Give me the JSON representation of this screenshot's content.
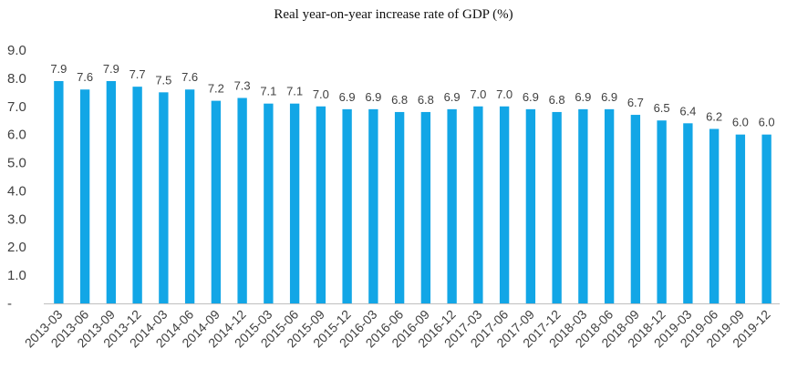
{
  "chart_data": {
    "type": "bar",
    "title": "Real year-on-year increase rate of GDP (%)",
    "categories": [
      "2013-03",
      "2013-06",
      "2013-09",
      "2013-12",
      "2014-03",
      "2014-06",
      "2014-09",
      "2014-12",
      "2015-03",
      "2015-06",
      "2015-09",
      "2015-12",
      "2016-03",
      "2016-06",
      "2016-09",
      "2016-12",
      "2017-03",
      "2017-06",
      "2017-09",
      "2017-12",
      "2018-03",
      "2018-06",
      "2018-09",
      "2018-12",
      "2019-03",
      "2019-06",
      "2019-09",
      "2019-12"
    ],
    "values": [
      7.9,
      7.6,
      7.9,
      7.7,
      7.5,
      7.6,
      7.2,
      7.3,
      7.1,
      7.1,
      7.0,
      6.9,
      6.9,
      6.8,
      6.8,
      6.9,
      7.0,
      7.0,
      6.9,
      6.8,
      6.9,
      6.9,
      6.7,
      6.5,
      6.4,
      6.2,
      6.0,
      6.0
    ],
    "data_labels": [
      "7.9",
      "7.6",
      "7.9",
      "7.7",
      "7.5",
      "7.6",
      "7.2",
      "7.3",
      "7.1",
      "7.1",
      "7.0",
      "6.9",
      "6.9",
      "6.8",
      "6.8",
      "6.9",
      "7.0",
      "7.0",
      "6.9",
      "6.8",
      "6.9",
      "6.9",
      "6.7",
      "6.5",
      "6.4",
      "6.2",
      "6.0",
      "6.0"
    ],
    "xlabel": "",
    "ylabel": "",
    "ylim": [
      0,
      9
    ],
    "yticks": [
      0,
      1,
      2,
      3,
      4,
      5,
      6,
      7,
      8,
      9
    ],
    "ytick_labels": [
      "-",
      "1.0",
      "2.0",
      "3.0",
      "4.0",
      "5.0",
      "6.0",
      "7.0",
      "8.0",
      "9.0"
    ],
    "grid": false,
    "legend": "none",
    "bar_color": "#12A6E6",
    "axis_color": "#bfbfbf"
  }
}
